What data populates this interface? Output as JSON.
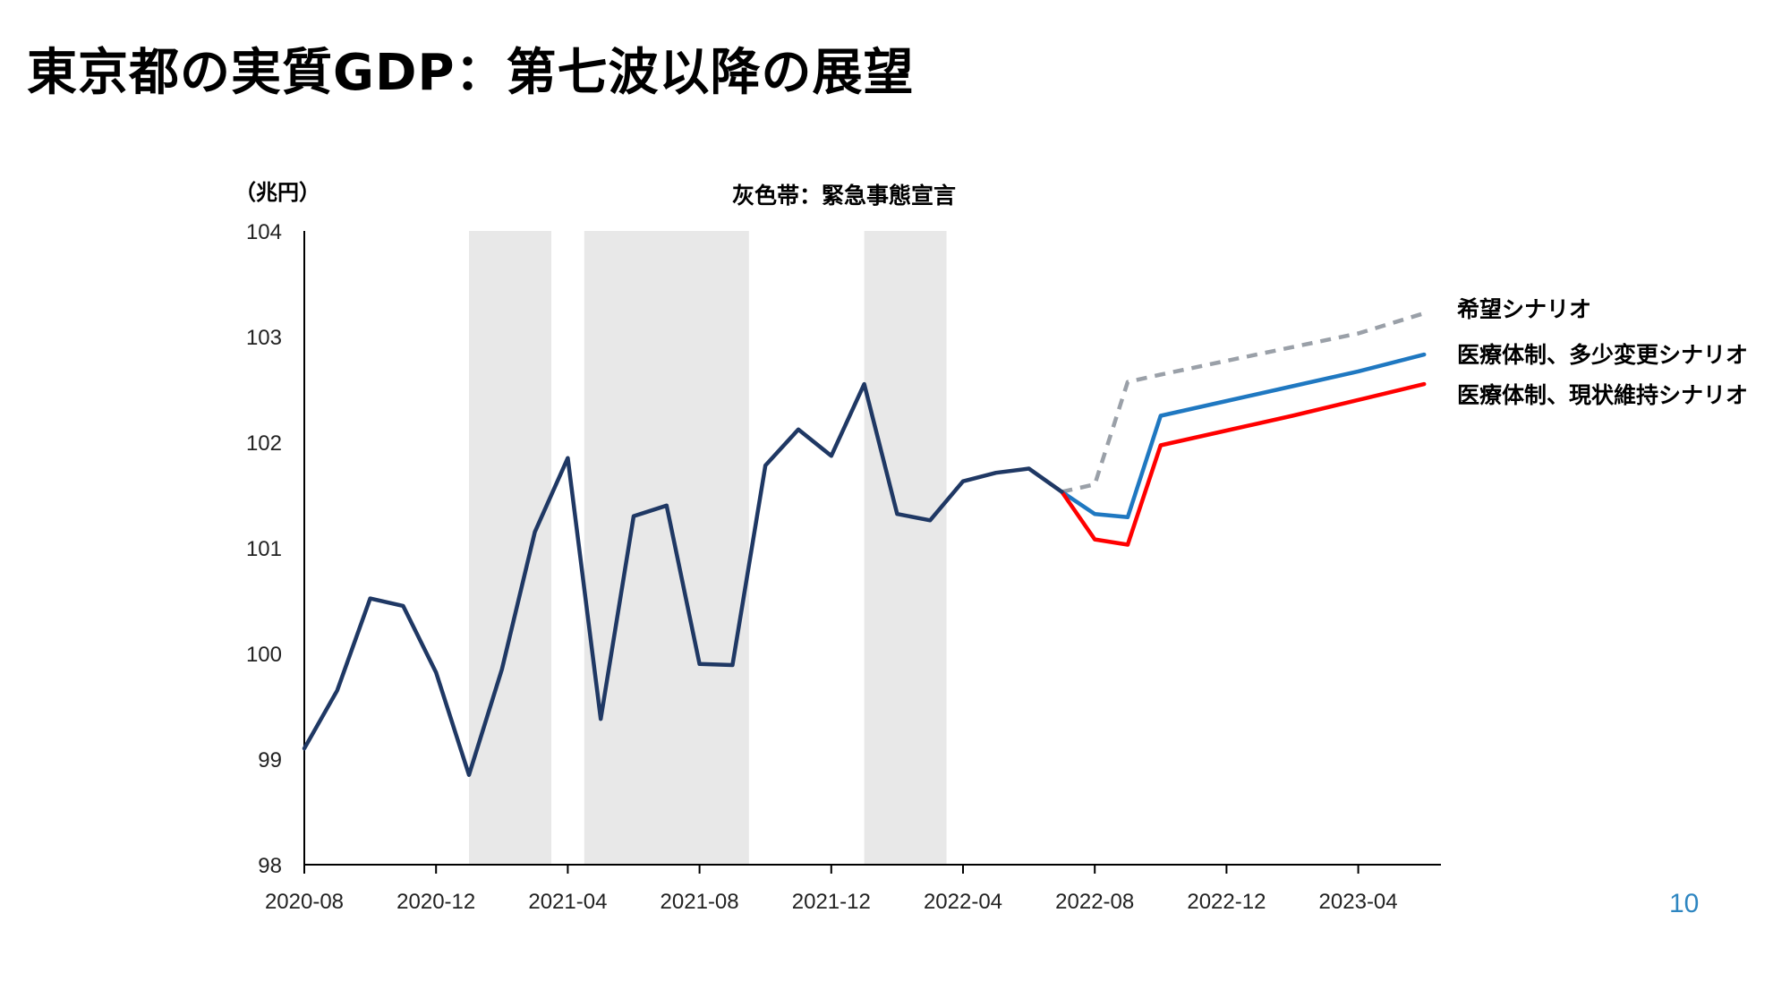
{
  "slide": {
    "title": "東京都の実質GDP：第七波以降の展望",
    "page_number": "10"
  },
  "colors": {
    "actual": "#1f3864",
    "hope": "#9aa0a8",
    "improve": "#1f78c1",
    "maintain": "#ff0000",
    "shading": "#e8e8e8",
    "axis": "#000000",
    "page_number": "#2e86c1"
  },
  "chart_data": {
    "type": "line",
    "unit_label": "（兆円）",
    "annotation": "灰色帯：緊急事態宣言",
    "ylim": [
      98,
      104
    ],
    "yticks": [
      "98",
      "99",
      "100",
      "101",
      "102",
      "103",
      "104"
    ],
    "xlim": [
      "2020-08",
      "2023-06"
    ],
    "xticks": [
      "2020-08",
      "2020-12",
      "2021-04",
      "2021-08",
      "2021-12",
      "2022-04",
      "2022-08",
      "2022-12",
      "2023-04"
    ],
    "grid": false,
    "legend": "right, labels at line ends",
    "shaded_periods": [
      {
        "start": "2021-01",
        "end": "2021-03.5"
      },
      {
        "start": "2021-04.5",
        "end": "2021-09.5"
      },
      {
        "start": "2022-01",
        "end": "2022-03.5"
      }
    ],
    "series": [
      {
        "key": "actual",
        "style": "solid",
        "points": [
          [
            "2020-08",
            99.1
          ],
          [
            "2020-09",
            99.65
          ],
          [
            "2020-10",
            100.52
          ],
          [
            "2020-11",
            100.45
          ],
          [
            "2020-12",
            99.82
          ],
          [
            "2021-01",
            98.85
          ],
          [
            "2021-02",
            99.85
          ],
          [
            "2021-03",
            101.15
          ],
          [
            "2021-04",
            101.85
          ],
          [
            "2021-05",
            99.38
          ],
          [
            "2021-06",
            101.3
          ],
          [
            "2021-07",
            101.4
          ],
          [
            "2021-08",
            99.9
          ],
          [
            "2021-09",
            99.89
          ],
          [
            "2021-10",
            101.78
          ],
          [
            "2021-11",
            102.12
          ],
          [
            "2021-12",
            101.87
          ],
          [
            "2022-01",
            102.55
          ],
          [
            "2022-02",
            101.32
          ],
          [
            "2022-03",
            101.26
          ],
          [
            "2022-04",
            101.63
          ],
          [
            "2022-05",
            101.71
          ],
          [
            "2022-06",
            101.75
          ],
          [
            "2022-07",
            101.53
          ]
        ]
      },
      {
        "key": "hope",
        "name": "希望シナリオ",
        "style": "dashed",
        "points": [
          [
            "2022-07",
            101.53
          ],
          [
            "2022-08",
            101.6
          ],
          [
            "2022-09",
            102.57
          ],
          [
            "2022-10",
            102.64
          ],
          [
            "2022-12",
            102.77
          ],
          [
            "2023-02",
            102.9
          ],
          [
            "2023-04",
            103.03
          ],
          [
            "2023-06",
            103.22
          ]
        ]
      },
      {
        "key": "improve",
        "name": "医療体制、多少変更シナリオ",
        "style": "solid",
        "points": [
          [
            "2022-07",
            101.53
          ],
          [
            "2022-08",
            101.32
          ],
          [
            "2022-09",
            101.29
          ],
          [
            "2022-10",
            102.25
          ],
          [
            "2022-12",
            102.39
          ],
          [
            "2023-02",
            102.53
          ],
          [
            "2023-04",
            102.67
          ],
          [
            "2023-06",
            102.83
          ]
        ]
      },
      {
        "key": "maintain",
        "name": "医療体制、現状維持シナリオ",
        "style": "solid",
        "points": [
          [
            "2022-07",
            101.53
          ],
          [
            "2022-08",
            101.08
          ],
          [
            "2022-09",
            101.03
          ],
          [
            "2022-10",
            101.97
          ],
          [
            "2022-12",
            102.11
          ],
          [
            "2023-02",
            102.25
          ],
          [
            "2023-04",
            102.4
          ],
          [
            "2023-06",
            102.55
          ]
        ]
      }
    ]
  }
}
